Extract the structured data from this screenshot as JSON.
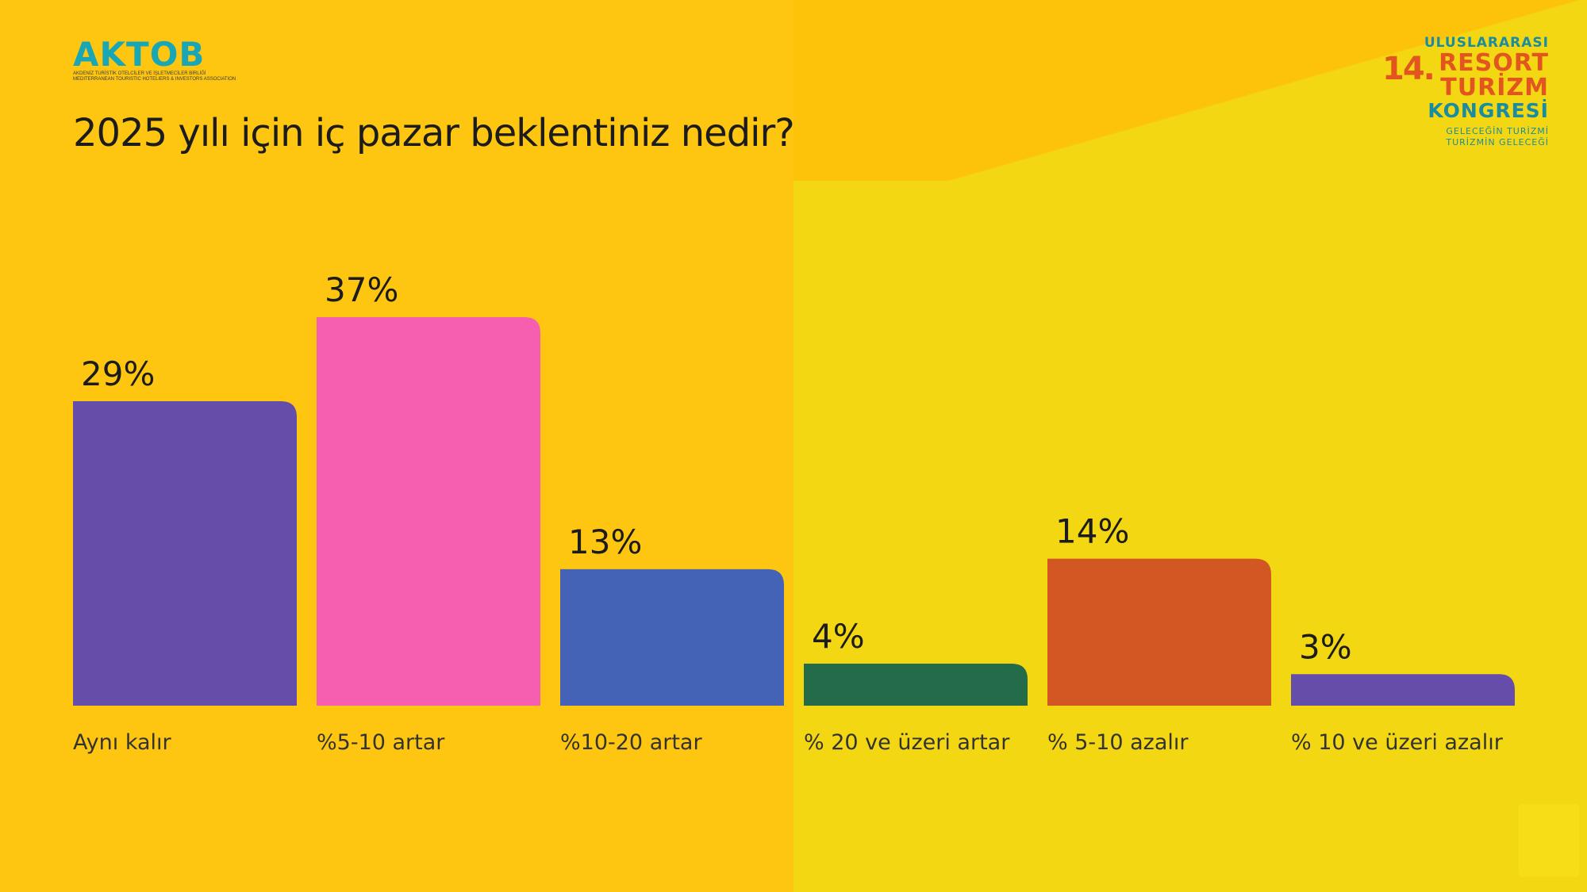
{
  "logo_left": {
    "word": "AKTOB",
    "line1": "AKDENİZ TURİSTİK OTELCİLER VE İŞLETMECİLER BİRLİĞİ",
    "line2": "MEDITERRANEAN TOURISTIC HOTELIERS & INVESTORS ASSOCIATION"
  },
  "logo_right": {
    "number": "14.",
    "line1": "ULUSLARARASI",
    "line2": "RESORT",
    "line3": "TURİZM",
    "line4": "KONGRESİ",
    "tag1": "GELECEĞİN TURİZMİ",
    "tag2": "TURİZMİN GELECEĞİ"
  },
  "chart_data": {
    "type": "bar",
    "title": "2025 yılı için iç pazar beklentiniz nedir?",
    "categories": [
      "Aynı kalır",
      "%5-10 artar",
      "%10-20 artar",
      "% 20 ve üzeri artar",
      "% 5-10 azalır",
      "% 10 ve üzeri azalır"
    ],
    "values": [
      29,
      37,
      13,
      4,
      14,
      3
    ],
    "value_labels": [
      "29%",
      "37%",
      "13%",
      "4%",
      "14%",
      "3%"
    ],
    "colors": [
      "#644ea9",
      "#f65eb0",
      "#4463b6",
      "#236b49",
      "#d35722",
      "#644ea9"
    ],
    "ylim": [
      0,
      37
    ],
    "grid": false
  }
}
